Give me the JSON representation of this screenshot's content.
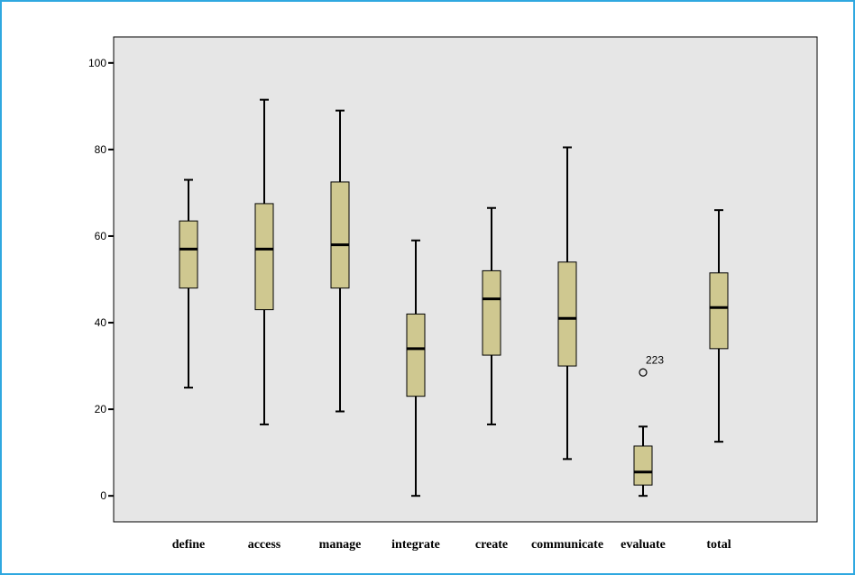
{
  "chart_data": {
    "type": "boxplot",
    "title": "",
    "xlabel": "",
    "ylabel": "",
    "ylim": [
      -6,
      106
    ],
    "yticks": [
      0,
      20,
      40,
      60,
      80,
      100
    ],
    "ytick_labels": [
      "0",
      "20",
      "40",
      "60",
      "80",
      "100"
    ],
    "grid": false,
    "background": "#e6e6e6",
    "box_fill": "#cfc890",
    "categories": [
      "define",
      "access",
      "manage",
      "integrate",
      "create",
      "communicate",
      "evaluate",
      "total"
    ],
    "boxes": [
      {
        "min": 25,
        "q1": 48,
        "median": 57,
        "q3": 63.5,
        "max": 73
      },
      {
        "min": 16.5,
        "q1": 43,
        "median": 57,
        "q3": 67.5,
        "max": 91.5
      },
      {
        "min": 19.5,
        "q1": 48,
        "median": 58,
        "q3": 72.5,
        "max": 89
      },
      {
        "min": 0,
        "q1": 23,
        "median": 34,
        "q3": 42,
        "max": 59
      },
      {
        "min": 16.5,
        "q1": 32.5,
        "median": 45.5,
        "q3": 52,
        "max": 66.5
      },
      {
        "min": 8.5,
        "q1": 30,
        "median": 41,
        "q3": 54,
        "max": 80.5
      },
      {
        "min": 0,
        "q1": 2.5,
        "median": 5.5,
        "q3": 11.5,
        "max": 16
      },
      {
        "min": 12.5,
        "q1": 34,
        "median": 43.5,
        "q3": 51.5,
        "max": 66
      }
    ],
    "outliers": [
      {
        "category": "evaluate",
        "value": 28.5,
        "label": "223"
      }
    ]
  }
}
